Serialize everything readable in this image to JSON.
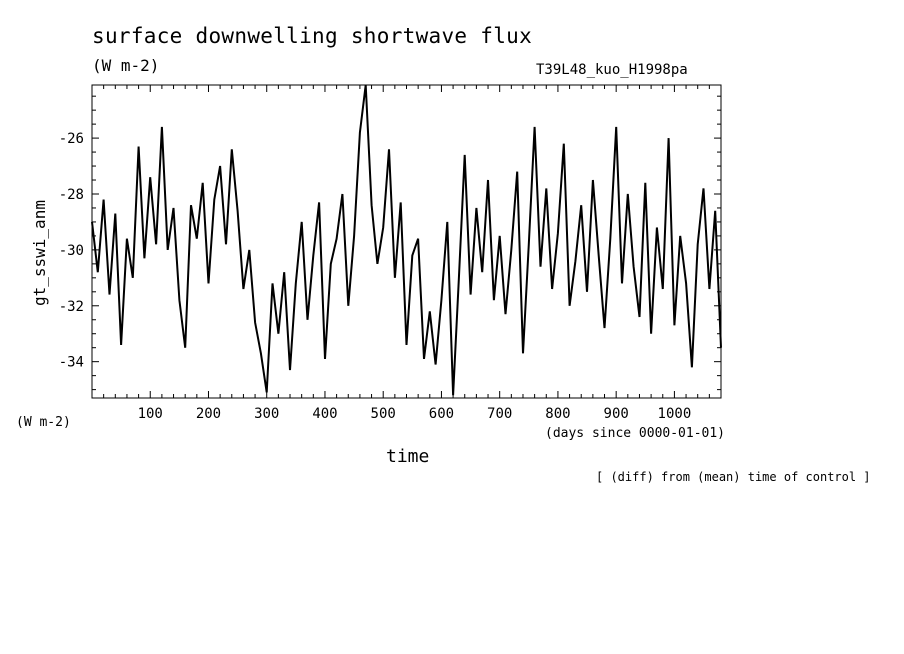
{
  "title": "surface downwelling shortwave flux",
  "units_label": "(W m-2)",
  "run_name": "T39L48_kuo_H1998pa",
  "y_axis_units": "(W m-2)",
  "x_axis_units": "(days since 0000-01-01)",
  "footnote": "[ (diff) from (mean) time of control ]",
  "chart_data": {
    "type": "line",
    "xlabel": "time",
    "ylabel": "gt_sswi_anm",
    "xlim": [
      0,
      1080
    ],
    "ylim": [
      -35.3,
      -24.1
    ],
    "x_ticks": [
      100,
      200,
      300,
      400,
      500,
      600,
      700,
      800,
      900,
      1000
    ],
    "y_ticks": [
      -34,
      -32,
      -30,
      -28,
      -26
    ],
    "x_tick_labels": [
      "100",
      "200",
      "300",
      "400",
      "500",
      "600",
      "700",
      "800",
      "900",
      "1000"
    ],
    "y_tick_labels": [
      "-34",
      "-32",
      "-30",
      "-28",
      "-26"
    ],
    "grid": false,
    "color": "#000000",
    "series": [
      {
        "x": [
          0,
          10,
          20,
          30,
          40,
          50,
          60,
          70,
          80,
          90,
          100,
          110,
          120,
          130,
          140,
          150,
          160,
          170,
          180,
          190,
          200,
          210,
          220,
          230,
          240,
          250,
          260,
          270,
          280,
          290,
          300,
          310,
          320,
          330,
          340,
          350,
          360,
          370,
          380,
          390,
          400,
          410,
          420,
          430,
          440,
          450,
          460,
          470,
          480,
          490,
          500,
          510,
          520,
          530,
          540,
          550,
          560,
          570,
          580,
          590,
          600,
          610,
          620,
          630,
          640,
          650,
          660,
          670,
          680,
          690,
          700,
          710,
          720,
          730,
          740,
          750,
          760,
          770,
          780,
          790,
          800,
          810,
          820,
          830,
          840,
          850,
          860,
          870,
          880,
          890,
          900,
          910,
          920,
          930,
          940,
          950,
          960,
          970,
          980,
          990,
          1000,
          1010,
          1020,
          1030,
          1040,
          1050,
          1060,
          1070,
          1080
        ],
        "values": [
          -29.0,
          -30.8,
          -28.2,
          -31.6,
          -28.7,
          -33.4,
          -29.6,
          -31.0,
          -26.3,
          -30.3,
          -27.4,
          -29.8,
          -25.6,
          -30.0,
          -28.5,
          -31.8,
          -33.5,
          -28.4,
          -29.6,
          -27.6,
          -31.2,
          -28.2,
          -27.0,
          -29.8,
          -26.4,
          -28.6,
          -31.4,
          -30.0,
          -32.6,
          -33.7,
          -35.1,
          -31.2,
          -33.0,
          -30.8,
          -34.3,
          -31.2,
          -29.0,
          -32.5,
          -30.2,
          -28.3,
          -33.9,
          -30.5,
          -29.6,
          -28.0,
          -32.0,
          -29.5,
          -25.8,
          -24.1,
          -28.4,
          -30.5,
          -29.2,
          -26.4,
          -31.0,
          -28.3,
          -33.4,
          -30.2,
          -29.6,
          -33.9,
          -32.2,
          -34.1,
          -31.8,
          -29.0,
          -35.2,
          -31.0,
          -26.6,
          -31.6,
          -28.5,
          -30.8,
          -27.5,
          -31.8,
          -29.5,
          -32.3,
          -30.0,
          -27.2,
          -33.7,
          -29.8,
          -25.6,
          -30.6,
          -27.8,
          -31.4,
          -29.4,
          -26.2,
          -32.0,
          -30.4,
          -28.4,
          -31.5,
          -27.5,
          -30.2,
          -32.8,
          -29.6,
          -25.6,
          -31.2,
          -28.0,
          -30.6,
          -32.4,
          -27.6,
          -33.0,
          -29.2,
          -31.4,
          -26.0,
          -32.7,
          -29.5,
          -31.2,
          -34.2,
          -29.8,
          -27.8,
          -31.4,
          -28.6,
          -33.5
        ]
      }
    ]
  }
}
